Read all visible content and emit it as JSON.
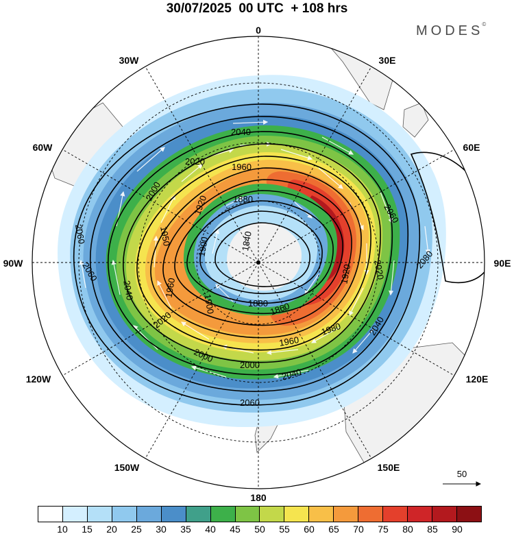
{
  "title": "30/07/2025  00 UTC  + 108 hrs",
  "brand": "MODES",
  "brand_mark": "©",
  "map": {
    "projection": "south-polar-stereographic",
    "longitude_labels": [
      {
        "id": "lon-0",
        "text": "0"
      },
      {
        "id": "lon-30e",
        "text": "30E"
      },
      {
        "id": "lon-60e",
        "text": "60E"
      },
      {
        "id": "lon-90e",
        "text": "90E"
      },
      {
        "id": "lon-120e",
        "text": "120E"
      },
      {
        "id": "lon-150e",
        "text": "150E"
      },
      {
        "id": "lon-180",
        "text": "180"
      },
      {
        "id": "lon-150w",
        "text": "150W"
      },
      {
        "id": "lon-120w",
        "text": "120W"
      },
      {
        "id": "lon-90w",
        "text": "90W"
      },
      {
        "id": "lon-60w",
        "text": "60W"
      },
      {
        "id": "lon-30w",
        "text": "30W"
      }
    ],
    "contour_labels": [
      "1840",
      "1860",
      "1880",
      "1900",
      "1920",
      "1950",
      "1960",
      "1980",
      "2000",
      "2020",
      "2040",
      "2060",
      "2080"
    ],
    "reference_vector": "50"
  },
  "colorbar": {
    "colors": [
      "#ffffff",
      "#d4efff",
      "#b4e0f8",
      "#90c9ee",
      "#6ba9dc",
      "#4b8ec9",
      "#40a08a",
      "#3db04a",
      "#7ec445",
      "#c3d84a",
      "#f5e44f",
      "#f8bf48",
      "#f49a3c",
      "#ee6d32",
      "#e4402c",
      "#cf2528",
      "#b3191e",
      "#8c1014"
    ],
    "ticks": [
      "10",
      "15",
      "20",
      "25",
      "30",
      "35",
      "40",
      "45",
      "50",
      "55",
      "60",
      "65",
      "70",
      "75",
      "80",
      "85",
      "90"
    ]
  }
}
